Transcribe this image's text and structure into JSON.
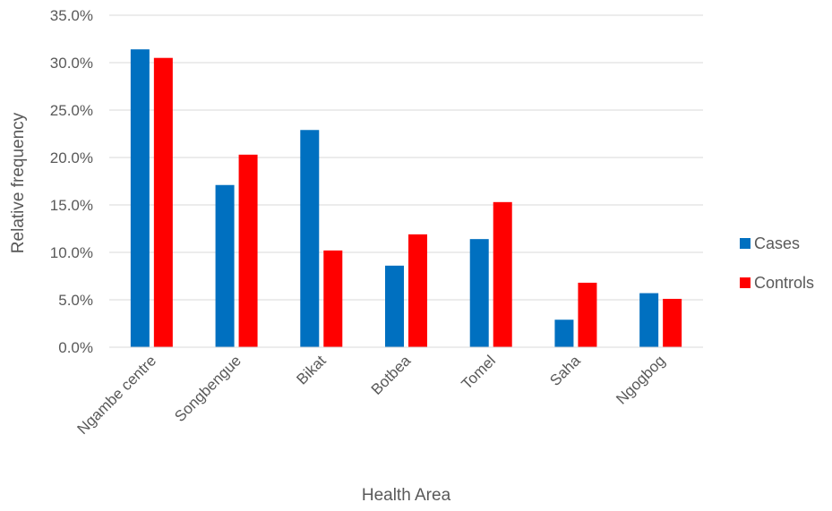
{
  "chart_data": {
    "type": "bar",
    "title": "",
    "xlabel": "Health Area",
    "ylabel": "Relative frequency",
    "ylim": [
      0,
      35
    ],
    "ytick_step": 5,
    "ytick_format": "percent_1dp",
    "categories": [
      "Ngambe centre",
      "Songbengue",
      "Bikat",
      "Botbea",
      "Tomel",
      "Saha",
      "Ngogbog"
    ],
    "series": [
      {
        "name": "Cases",
        "color": "#0070C0",
        "values": [
          31.4,
          17.1,
          22.9,
          8.6,
          11.4,
          2.9,
          5.7
        ]
      },
      {
        "name": "Controls",
        "color": "#FF0000",
        "values": [
          30.5,
          20.3,
          10.2,
          11.9,
          15.3,
          6.8,
          5.1
        ]
      }
    ],
    "grid": true,
    "legend_position": "right"
  }
}
